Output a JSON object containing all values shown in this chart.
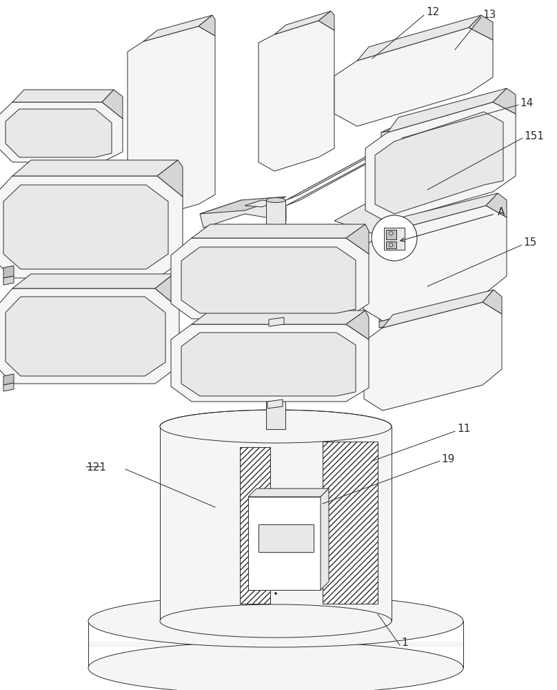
{
  "bg_color": "#ffffff",
  "line_color": "#2a2a2a",
  "fill_light": "#f5f5f5",
  "fill_mid": "#e8e8e8",
  "fill_dark": "#d5d5d5",
  "fill_darker": "#c0c0c0",
  "figsize": [
    8.08,
    10.0
  ],
  "dpi": 100,
  "lw": 0.7,
  "font_size": 11
}
